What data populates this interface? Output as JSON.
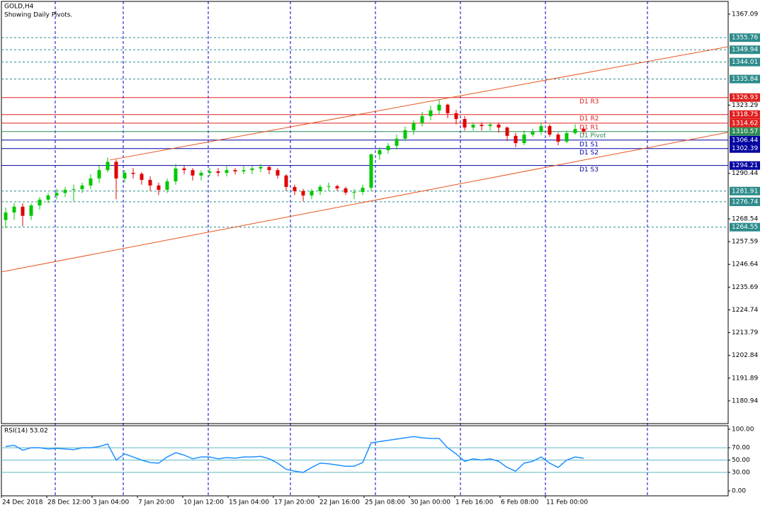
{
  "chart_data": {
    "type": "candlestick",
    "title": "GOLD,H4",
    "subtitle": "Showing Daily Pivots.",
    "up_color": "#00c800",
    "down_color": "#e00000",
    "ylim": [
      1170.0,
      1373.2
    ],
    "yticks": [
      1367.09,
      1323.29,
      1290.44,
      1268.54,
      1257.59,
      1246.64,
      1235.69,
      1224.74,
      1213.79,
      1202.84,
      1191.89,
      1180.94
    ],
    "x_labels": [
      "24 Dec 2018",
      "28 Dec 12:00",
      "3 Jan 04:00",
      "7 Jan 20:00",
      "10 Jan 12:00",
      "15 Jan 04:00",
      "17 Jan 20:00",
      "22 Jan 16:00",
      "25 Jan 08:00",
      "30 Jan 00:00",
      "1 Feb 16:00",
      "6 Feb 08:00",
      "11 Feb 00:00"
    ],
    "ohlc": [
      [
        1268,
        1274,
        1264,
        1271.6
      ],
      [
        1271.6,
        1276,
        1268,
        1274.4
      ],
      [
        1274.4,
        1276,
        1265,
        1270
      ],
      [
        1270,
        1276,
        1268,
        1275
      ],
      [
        1275,
        1279,
        1273,
        1277.8
      ],
      [
        1277.8,
        1281,
        1276,
        1279.8
      ],
      [
        1279.8,
        1283,
        1278,
        1281
      ],
      [
        1281,
        1284,
        1279,
        1282.5
      ],
      [
        1282.5,
        1285,
        1277,
        1282.8
      ],
      [
        1282.8,
        1286,
        1281,
        1284.6
      ],
      [
        1284.6,
        1290,
        1283,
        1288
      ],
      [
        1288,
        1294,
        1286,
        1292
      ],
      [
        1292,
        1298,
        1291,
        1296
      ],
      [
        1296,
        1297,
        1278,
        1288
      ],
      [
        1288,
        1292,
        1286,
        1290.7
      ],
      [
        1290.7,
        1293,
        1288,
        1290.2
      ],
      [
        1290.2,
        1291,
        1285,
        1287.3
      ],
      [
        1287.3,
        1289,
        1282,
        1284.6
      ],
      [
        1284.6,
        1286,
        1280,
        1282.5
      ],
      [
        1282.5,
        1288,
        1281,
        1286.6
      ],
      [
        1286.6,
        1295,
        1285,
        1292.8
      ],
      [
        1292.8,
        1294,
        1290,
        1292
      ],
      [
        1292,
        1293,
        1287,
        1289.4
      ],
      [
        1289.4,
        1292,
        1287,
        1290.7
      ],
      [
        1290.7,
        1293,
        1289,
        1291.4
      ],
      [
        1291.4,
        1293,
        1289,
        1290.7
      ],
      [
        1290.7,
        1294,
        1289,
        1292
      ],
      [
        1292,
        1293,
        1290,
        1291.4
      ],
      [
        1291.4,
        1294,
        1290,
        1292
      ],
      [
        1292,
        1294,
        1290,
        1292.8
      ],
      [
        1292.8,
        1295,
        1291,
        1293.5
      ],
      [
        1293.5,
        1294,
        1290,
        1292
      ],
      [
        1292,
        1293,
        1288,
        1289.4
      ],
      [
        1289.4,
        1290,
        1282,
        1283.9
      ],
      [
        1283.9,
        1285,
        1280,
        1281.9
      ],
      [
        1281.9,
        1283,
        1277,
        1279.8
      ],
      [
        1279.8,
        1283,
        1278,
        1281.9
      ],
      [
        1281.9,
        1285,
        1280,
        1284
      ],
      [
        1284,
        1286,
        1282,
        1284.3
      ],
      [
        1284.3,
        1285,
        1282,
        1283.2
      ],
      [
        1283.2,
        1284,
        1280,
        1281.2
      ],
      [
        1281.2,
        1283,
        1278,
        1281.5
      ],
      [
        1281.5,
        1285,
        1280,
        1283.5
      ],
      [
        1283.5,
        1300,
        1282,
        1299.6
      ],
      [
        1299.6,
        1303,
        1297,
        1301.6
      ],
      [
        1301.6,
        1305,
        1300,
        1303.7
      ],
      [
        1303.7,
        1309,
        1302,
        1307.1
      ],
      [
        1307.1,
        1313,
        1306,
        1311.2
      ],
      [
        1311.2,
        1316,
        1309,
        1314.6
      ],
      [
        1314.6,
        1320,
        1313,
        1318
      ],
      [
        1318,
        1323,
        1316,
        1320.7
      ],
      [
        1320.7,
        1326,
        1319,
        1323.5
      ],
      [
        1323.5,
        1324,
        1317,
        1319.4
      ],
      [
        1319.4,
        1321,
        1314,
        1316.6
      ],
      [
        1316.6,
        1318,
        1311,
        1312.5
      ],
      [
        1312.5,
        1315,
        1311,
        1313.8
      ],
      [
        1313.8,
        1315,
        1311,
        1313.2
      ],
      [
        1313.2,
        1315,
        1311,
        1313.9
      ],
      [
        1313.9,
        1315,
        1310,
        1312.5
      ],
      [
        1312.5,
        1313,
        1306,
        1308.5
      ],
      [
        1308.5,
        1310,
        1303,
        1305
      ],
      [
        1305,
        1311,
        1304,
        1309.1
      ],
      [
        1309.1,
        1312,
        1308,
        1310.5
      ],
      [
        1310.5,
        1315,
        1309,
        1313.2
      ],
      [
        1313.2,
        1314,
        1308,
        1309.1
      ],
      [
        1309.1,
        1310,
        1304,
        1305.7
      ],
      [
        1305.7,
        1311,
        1305,
        1309.8
      ],
      [
        1309.8,
        1314,
        1309,
        1311.8
      ],
      [
        1311.8,
        1313,
        1309,
        1310.5
      ]
    ],
    "levels": [
      {
        "value": 1355.76,
        "color": "#2e8b8b",
        "dashed": true
      },
      {
        "value": 1349.94,
        "color": "#2e8b8b",
        "dashed": true
      },
      {
        "value": 1344.01,
        "color": "#2e8b8b",
        "dashed": true
      },
      {
        "value": 1335.84,
        "color": "#2e8b8b",
        "dashed": true
      },
      {
        "value": 1326.93,
        "name": "D1 R3",
        "color": "#e0201f",
        "dashed": false
      },
      {
        "value": 1318.75,
        "name": "D1 R2",
        "color": "#e0201f",
        "dashed": false
      },
      {
        "value": 1314.62,
        "name": "D1 R1",
        "color": "#e0201f",
        "dashed": false
      },
      {
        "value": 1310.57,
        "name": "D1 Pivot",
        "color": "#2e8b57",
        "dashed": false
      },
      {
        "value": 1306.44,
        "name": "D1 S1",
        "color": "#0000a0",
        "dashed": false
      },
      {
        "value": 1302.39,
        "name": "D1 S2",
        "color": "#0000a0",
        "dashed": false
      },
      {
        "value": 1294.21,
        "name": "D1 S3",
        "color": "#0000a0",
        "dashed": false
      },
      {
        "value": 1281.91,
        "color": "#2e8b8b",
        "dashed": true
      },
      {
        "value": 1276.74,
        "color": "#2e8b8b",
        "dashed": true
      },
      {
        "value": 1264.55,
        "color": "#2e8b8b",
        "dashed": true
      }
    ],
    "trendlines": [
      {
        "color": "#e8541c",
        "points": [
          [
            12.25,
            1296.85
          ],
          [
            85,
            1351.4
          ]
        ]
      },
      {
        "color": "#e8541c",
        "points": [
          [
            -0.5,
            1243
          ],
          [
            85,
            1310.2
          ]
        ]
      }
    ],
    "indicator": {
      "title": "RSI(14) 53.02",
      "color": "#1e90ff",
      "ylim": [
        -8,
        105.7
      ],
      "yticks": [
        {
          "value": 100,
          "label": "100.00"
        },
        {
          "value": 70,
          "label": "70.00"
        },
        {
          "value": 50,
          "label": "50.00"
        },
        {
          "value": 30,
          "label": "30.00"
        },
        {
          "value": 0,
          "label": "0.00"
        }
      ],
      "level_lines": [
        70,
        50,
        30
      ],
      "values": [
        72,
        74,
        66,
        70,
        70,
        68,
        69,
        68,
        67,
        70,
        70,
        72,
        76,
        50,
        60,
        55,
        50,
        46,
        45,
        55,
        62,
        58,
        52,
        55,
        55,
        52,
        54,
        53,
        55,
        55,
        56,
        52,
        45,
        35,
        32,
        30,
        38,
        45,
        44,
        42,
        40,
        40,
        46,
        78,
        80,
        82,
        84,
        86,
        88,
        86,
        85,
        85,
        70,
        60,
        48,
        52,
        50,
        52,
        48,
        38,
        32,
        45,
        48,
        55,
        45,
        38,
        50,
        55,
        53
      ]
    }
  }
}
